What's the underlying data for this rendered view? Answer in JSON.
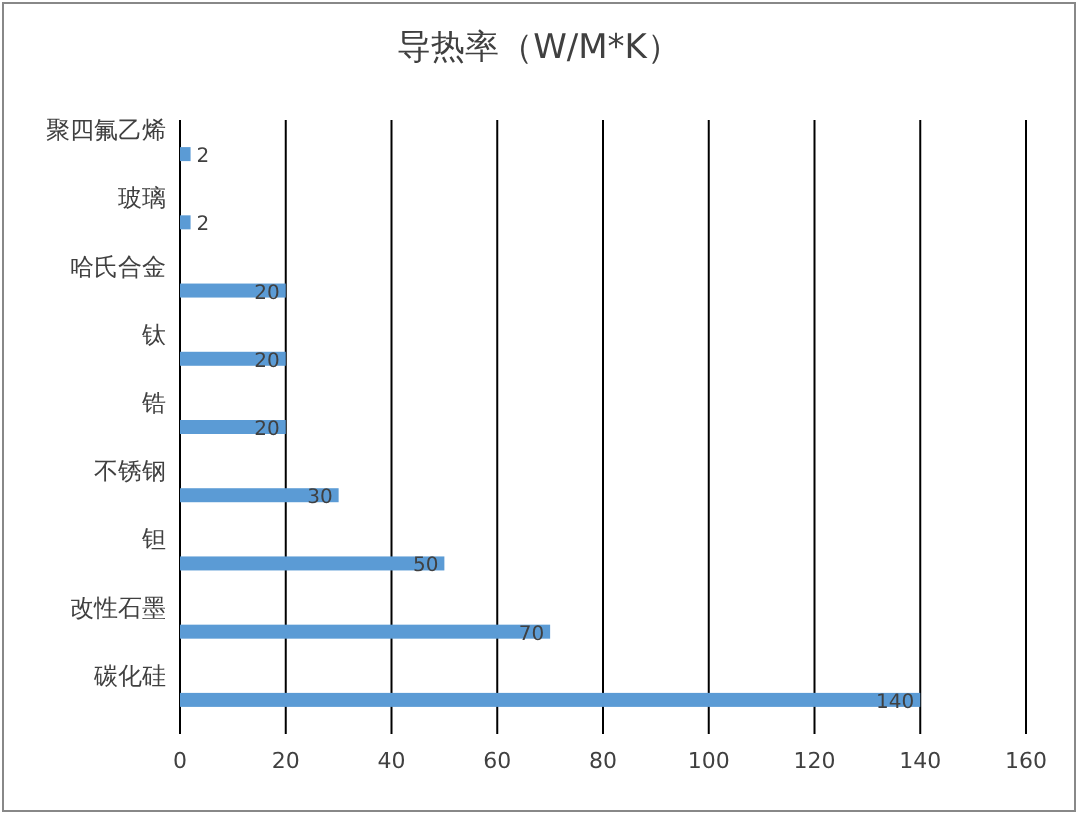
{
  "chart_data": {
    "type": "bar",
    "orientation": "horizontal",
    "title": "导热率（W/M*K）",
    "categories": [
      "聚四氟乙烯",
      "玻璃",
      "哈氏合金",
      "钛",
      "锆",
      "不锈钢",
      "钽",
      "改性石墨",
      "碳化硅"
    ],
    "values": [
      2,
      2,
      20,
      20,
      20,
      30,
      50,
      70,
      140
    ],
    "color": "#5b9bd5",
    "xlim": [
      0,
      160
    ],
    "xticks": [
      0,
      20,
      40,
      60,
      80,
      100,
      120,
      140,
      160
    ],
    "grid": "x",
    "data_labels": true
  }
}
